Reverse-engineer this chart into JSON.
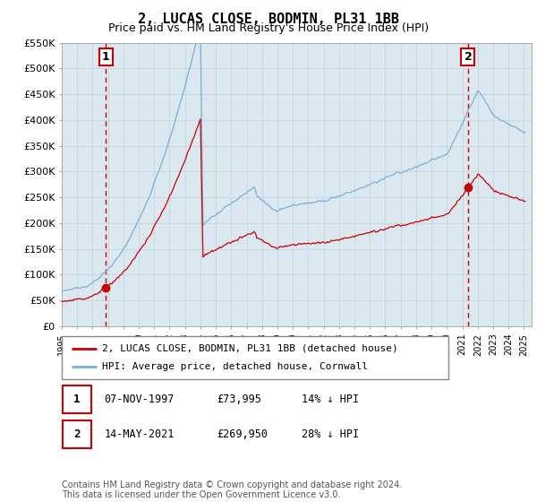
{
  "title": "2, LUCAS CLOSE, BODMIN, PL31 1BB",
  "subtitle": "Price paid vs. HM Land Registry's House Price Index (HPI)",
  "ylim": [
    0,
    550000
  ],
  "yticks": [
    0,
    50000,
    100000,
    150000,
    200000,
    250000,
    300000,
    350000,
    400000,
    450000,
    500000,
    550000
  ],
  "ytick_labels": [
    "£0",
    "£50K",
    "£100K",
    "£150K",
    "£200K",
    "£250K",
    "£300K",
    "£350K",
    "£400K",
    "£450K",
    "£500K",
    "£550K"
  ],
  "sale1_date": 1997.85,
  "sale1_price": 73995,
  "sale1_label": "1",
  "sale2_date": 2021.37,
  "sale2_price": 269950,
  "sale2_label": "2",
  "sale_color": "#cc0000",
  "hpi_color": "#7ab0d4",
  "marker_color": "#cc0000",
  "annotation_box_color": "#cc0000",
  "grid_color": "#c8d8e8",
  "plot_bg_color": "#dce8f0",
  "bg_color": "#ffffff",
  "legend_label1": "2, LUCAS CLOSE, BODMIN, PL31 1BB (detached house)",
  "legend_label2": "HPI: Average price, detached house, Cornwall",
  "table_row1": [
    "1",
    "07-NOV-1997",
    "£73,995",
    "14% ↓ HPI"
  ],
  "table_row2": [
    "2",
    "14-MAY-2021",
    "£269,950",
    "28% ↓ HPI"
  ],
  "footnote": "Contains HM Land Registry data © Crown copyright and database right 2024.\nThis data is licensed under the Open Government Licence v3.0.",
  "xmin": 1995,
  "xmax": 2025.5
}
